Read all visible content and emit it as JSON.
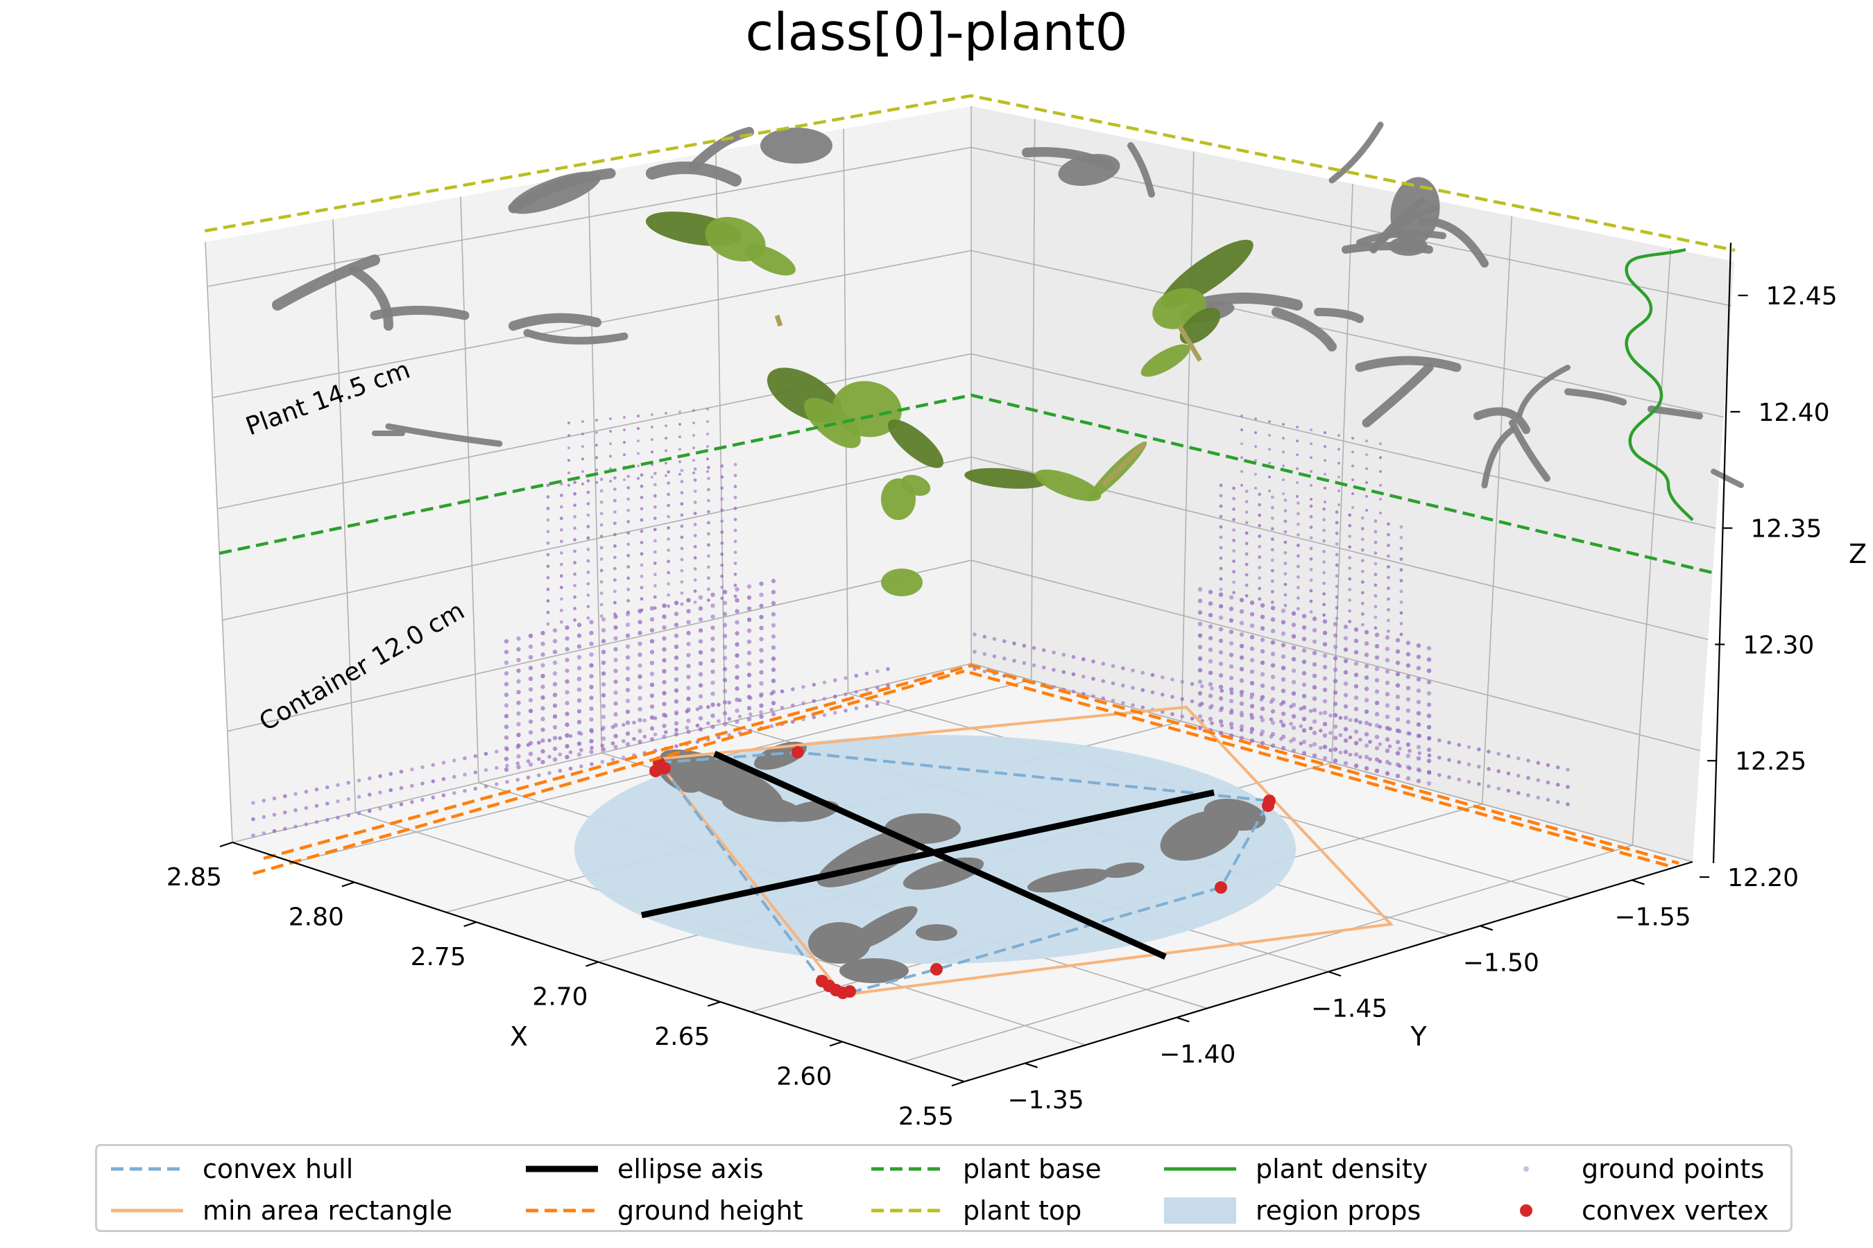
{
  "chart_data": {
    "type": "scatter3d",
    "title": "class[0]-plant0",
    "xlabel": "X",
    "ylabel": "Y",
    "zlabel": "Z",
    "x_ticks": [
      "2.85",
      "2.80",
      "2.75",
      "2.70",
      "2.65",
      "2.60",
      "2.55"
    ],
    "y_ticks": [
      "−1.35",
      "−1.40",
      "−1.45",
      "−1.50",
      "−1.55"
    ],
    "z_ticks": [
      "12.20",
      "12.25",
      "12.30",
      "12.35",
      "12.40",
      "12.45"
    ],
    "xlim": [
      2.55,
      2.85
    ],
    "ylim": [
      -1.33,
      -1.57
    ],
    "zlim": [
      12.2,
      12.47
    ],
    "grid": true,
    "legend_position": "bottom",
    "annotations": {
      "plant_height": "Plant 14.5 cm",
      "container_height": "Container 12.0 cm"
    },
    "levels": {
      "ground_height_z": 12.21,
      "plant_base_z": 12.33,
      "plant_top_z": 12.475
    },
    "series": [
      {
        "name": "convex hull",
        "style": "dashed",
        "color": "#7eaed3"
      },
      {
        "name": "min area rectangle",
        "style": "solid",
        "color": "#f7b47c"
      },
      {
        "name": "ellipse axis",
        "style": "solid",
        "color": "#000000"
      },
      {
        "name": "ground height",
        "style": "dashed",
        "color": "#ff7f0e"
      },
      {
        "name": "plant base",
        "style": "dashed",
        "color": "#2ca02c"
      },
      {
        "name": "plant top",
        "style": "dashed",
        "color": "#bcbd22"
      },
      {
        "name": "plant density",
        "style": "solid",
        "color": "#2ca02c"
      },
      {
        "name": "region props",
        "style": "patch",
        "color": "#c7dbea"
      },
      {
        "name": "ground points",
        "style": "point",
        "color": "#cdbfe0"
      },
      {
        "name": "convex vertex",
        "style": "point",
        "color": "#d62728"
      }
    ],
    "colors": {
      "plant_points": "#7ea53a",
      "plant_points_dark": "#5d7d2a",
      "projection_points": "#7f7f7f",
      "container_points": "#9b6cc4",
      "pane": "#f2f2f2",
      "grid": "#b0b0b0"
    }
  }
}
